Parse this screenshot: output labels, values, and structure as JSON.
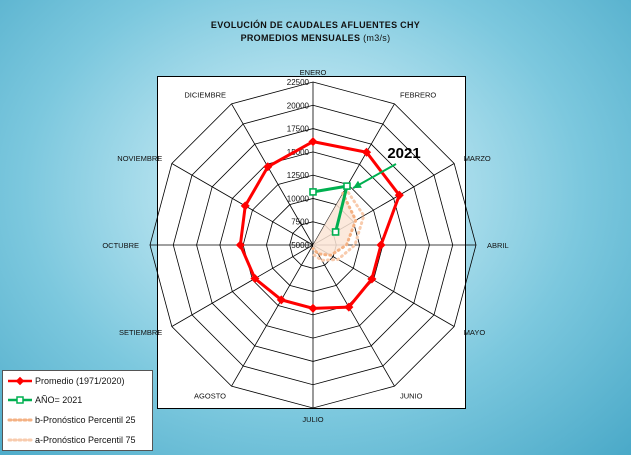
{
  "chart_data": {
    "type": "radar",
    "title": "EVOLUCIÓN DE CAUDALES AFLUENTES CHY",
    "subtitle": "PROMEDIOS MENSUALES",
    "unit": "(m3/s)",
    "categories": [
      "ENERO",
      "FEBRERO",
      "MARZO",
      "ABRIL",
      "MAYO",
      "JUNIO",
      "JULIO",
      "AGOSTO",
      "SETIEMBRE",
      "OCTUBRE",
      "NOVIEMBRE",
      "DICIEMBRE"
    ],
    "radial_axis": {
      "min": 5000,
      "max": 22500,
      "step": 2500,
      "tick_labels": [
        "5000",
        "7500",
        "10000",
        "12500",
        "15000",
        "17500",
        "20000",
        "22500"
      ]
    },
    "annotation": "2021",
    "legend_position": "bottom-left",
    "series": [
      {
        "name": "Promedio (1971/2020)",
        "color": "#ff0000",
        "values": [
          16100,
          16500,
          15700,
          12300,
          12300,
          12700,
          11800,
          11800,
          12200,
          12800,
          13400,
          14700
        ]
      },
      {
        "name": "AÑO= 2021",
        "color": "#00b050",
        "values": [
          10700,
          12300,
          7800,
          null,
          null,
          null,
          null,
          null,
          null,
          null,
          null,
          null
        ]
      },
      {
        "name": "b-Pronóstico Percentil 25",
        "color": "#f4b183",
        "values": [
          null,
          11400,
          10300,
          8600,
          7200,
          6100,
          5400,
          null,
          null,
          null,
          null,
          null
        ]
      },
      {
        "name": "a-Pronóstico Percentil 75",
        "color": "#f8cbad",
        "values": [
          null,
          12000,
          11300,
          9500,
          8100,
          6900,
          6000,
          null,
          null,
          null,
          null,
          null
        ]
      }
    ]
  }
}
